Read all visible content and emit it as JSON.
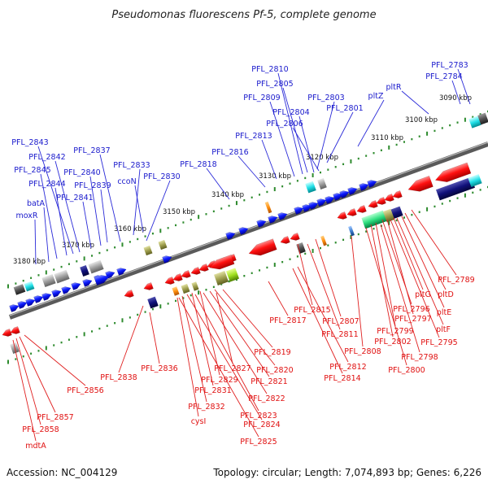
{
  "header": {
    "title": "Pseudomonas fluorescens Pf-5, complete genome"
  },
  "footer": {
    "accession": "Accession: NC_004129",
    "summary": "Topology: circular; Length: 7,074,893 bp; Genes: 6,226"
  },
  "colors": {
    "backbone": "#7a7a7a",
    "forward_gene": "#0b1bff",
    "reverse_gene": "#ff1010",
    "forward_label": "#1a1acc",
    "reverse_label": "#e01010",
    "ruler_dot": "#2e8b2e"
  },
  "ticks": [
    "3090 kbp",
    "3100 kbp",
    "3110 kbp",
    "3120 kbp",
    "3130 kbp",
    "3140 kbp",
    "3150 kbp",
    "3160 kbp",
    "3170 kbp",
    "3180 kbp"
  ],
  "top_labels": [
    "PFL_2783",
    "PFL_2784",
    "pltR",
    "pltZ",
    "PFL_2801",
    "PFL_2803",
    "PFL_2805",
    "PFL_2810",
    "PFL_2809",
    "PFL_2804",
    "PFL_2806",
    "PFL_2813",
    "PFL_2816",
    "PFL_2818",
    "PFL_2830",
    "PFL_2833",
    "ccoN",
    "PFL_2837",
    "PFL_2843",
    "PFL_2842",
    "PFL_2840",
    "PFL_2845",
    "PFL_2844",
    "PFL_2839",
    "PFL_2841",
    "batA",
    "moxR"
  ],
  "bottom_labels": [
    "PFL_2789",
    "pltD",
    "pltG",
    "pltE",
    "PFL_2796",
    "PFL_2797",
    "pltF",
    "PFL_2795",
    "PFL_2799",
    "PFL_2802",
    "PFL_2798",
    "PFL_2800",
    "PFL_2807",
    "PFL_2815",
    "PFL_2811",
    "PFL_2808",
    "PFL_2812",
    "PFL_2814",
    "PFL_2817",
    "PFL_2819",
    "PFL_2820",
    "PFL_2821",
    "PFL_2822",
    "PFL_2823",
    "PFL_2824",
    "PFL_2825",
    "PFL_2827",
    "PFL_2829",
    "PFL_2831",
    "PFL_2832",
    "cysI",
    "PFL_2836",
    "PFL_2838",
    "PFL_2856",
    "PFL_2857",
    "PFL_2858",
    "mdtA"
  ]
}
